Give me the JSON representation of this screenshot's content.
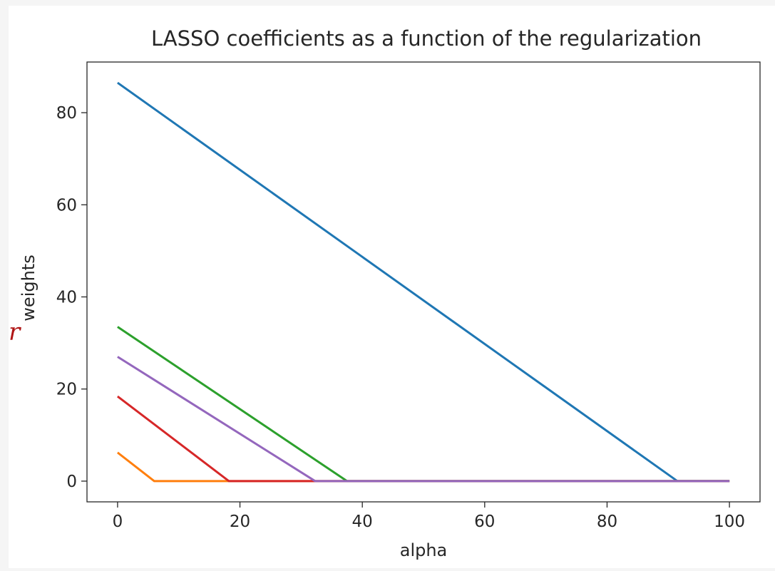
{
  "edge_glyph": "r",
  "chart_data": {
    "type": "line",
    "title": "LASSO coefficients as a function of the regularization",
    "xlabel": "alpha",
    "ylabel": "weights",
    "xlim": [
      -5,
      105
    ],
    "ylim": [
      -4.5,
      91
    ],
    "xticks": [
      0,
      20,
      40,
      60,
      80,
      100
    ],
    "yticks": [
      0,
      20,
      40,
      60,
      80
    ],
    "grid": false,
    "legend": "none",
    "series": [
      {
        "color": "#1f77b4",
        "x": [
          0,
          91.5,
          100
        ],
        "y": [
          86.5,
          0,
          0
        ]
      },
      {
        "color": "#ff7f0e",
        "x": [
          0,
          6,
          100
        ],
        "y": [
          6.2,
          0,
          0
        ]
      },
      {
        "color": "#2ca02c",
        "x": [
          0,
          37.5,
          100
        ],
        "y": [
          33.5,
          0,
          0
        ]
      },
      {
        "color": "#d62728",
        "x": [
          0,
          18.2,
          100
        ],
        "y": [
          18.4,
          0,
          0
        ]
      },
      {
        "color": "#9467bd",
        "x": [
          0,
          32.3,
          100
        ],
        "y": [
          27,
          0,
          0
        ]
      }
    ]
  }
}
